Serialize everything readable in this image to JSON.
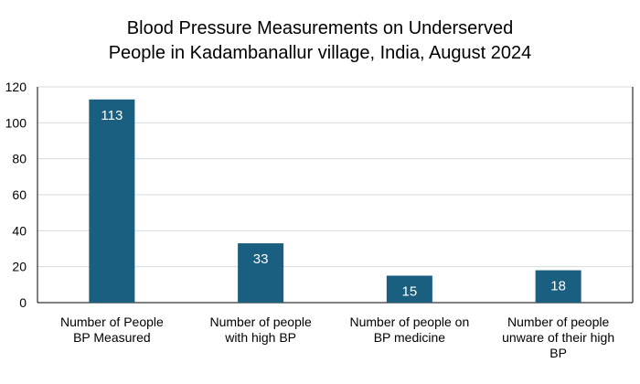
{
  "chart_data": {
    "type": "bar",
    "title_lines": [
      "Blood Pressure Measurements on Underserved",
      "People in Kadambanallur village, India, August 2024"
    ],
    "xlabel": "",
    "ylabel": "",
    "categories": [
      [
        "Number of People",
        "BP Measured"
      ],
      [
        "Number of people",
        "with high BP"
      ],
      [
        "Number of people on",
        "BP medicine"
      ],
      [
        "Number of people",
        "unware of their high",
        "BP"
      ]
    ],
    "values": [
      113,
      33,
      15,
      18
    ],
    "data_labels": [
      "113",
      "33",
      "15",
      "18"
    ],
    "ylim": [
      0,
      120
    ],
    "yticks": [
      0,
      20,
      40,
      60,
      80,
      100,
      120
    ],
    "grid": true,
    "legend": "none",
    "colors": {
      "bar": "#1a5f80",
      "grid": "#d9d9d9",
      "axis": "#000000",
      "data_label": "#ffffff"
    }
  }
}
